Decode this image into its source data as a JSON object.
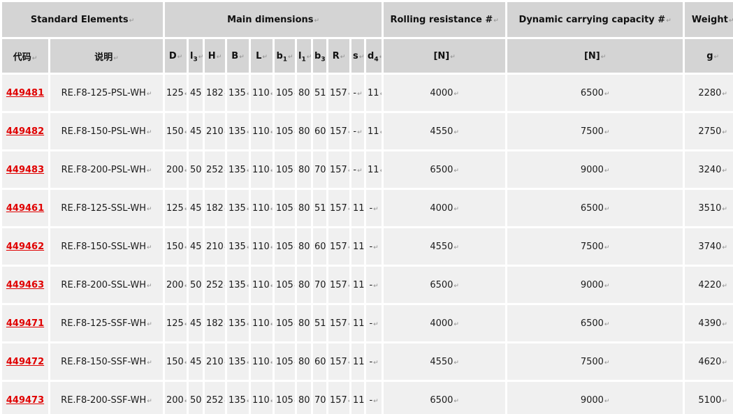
{
  "table": {
    "return_mark": "↵",
    "colors": {
      "header_bg": "#d4d4d4",
      "row_bg": "#f0f0f0",
      "border": "#ffffff",
      "link_red": "#e00000",
      "text": "#1b1b1b",
      "mark_gray": "#8f8f8f"
    },
    "header_groups": [
      {
        "label": "Standard Elements"
      },
      {
        "label": "Main dimensions"
      },
      {
        "label": "Rolling resistance #"
      },
      {
        "label": "Dynamic carrying capacity #"
      },
      {
        "label": "Weight"
      }
    ],
    "columns": [
      {
        "label": "代码"
      },
      {
        "label": "说明"
      },
      {
        "label": "D"
      },
      {
        "label": "l",
        "sub": "3"
      },
      {
        "label": "H"
      },
      {
        "label": "B"
      },
      {
        "label": "L"
      },
      {
        "label": "b",
        "sub": "1"
      },
      {
        "label": "l",
        "sub": "1"
      },
      {
        "label": "b",
        "sub": "3"
      },
      {
        "label": "R"
      },
      {
        "label": "s"
      },
      {
        "label": "d",
        "sub": "4"
      },
      {
        "label": "[N]"
      },
      {
        "label": "[N]"
      },
      {
        "label": "g"
      }
    ],
    "rows": [
      {
        "code": "449481",
        "description": "RE.F8-125-PSL-WH",
        "values": [
          "125",
          "45",
          "182",
          "135",
          "110",
          "105",
          "80",
          "51",
          "157",
          "-",
          "11",
          "4000",
          "6500",
          "2280"
        ]
      },
      {
        "code": "449482",
        "description": "RE.F8-150-PSL-WH",
        "values": [
          "150",
          "45",
          "210",
          "135",
          "110",
          "105",
          "80",
          "60",
          "157",
          "-",
          "11",
          "4550",
          "7500",
          "2750"
        ]
      },
      {
        "code": "449483",
        "description": "RE.F8-200-PSL-WH",
        "values": [
          "200",
          "50",
          "252",
          "135",
          "110",
          "105",
          "80",
          "70",
          "157",
          "-",
          "11",
          "6500",
          "9000",
          "3240"
        ]
      },
      {
        "code": "449461",
        "description": "RE.F8-125-SSL-WH",
        "values": [
          "125",
          "45",
          "182",
          "135",
          "110",
          "105",
          "80",
          "51",
          "157",
          "11",
          "-",
          "4000",
          "6500",
          "3510"
        ]
      },
      {
        "code": "449462",
        "description": "RE.F8-150-SSL-WH",
        "values": [
          "150",
          "45",
          "210",
          "135",
          "110",
          "105",
          "80",
          "60",
          "157",
          "11",
          "-",
          "4550",
          "7500",
          "3740"
        ]
      },
      {
        "code": "449463",
        "description": "RE.F8-200-SSL-WH",
        "values": [
          "200",
          "50",
          "252",
          "135",
          "110",
          "105",
          "80",
          "70",
          "157",
          "11",
          "-",
          "6500",
          "9000",
          "4220"
        ]
      },
      {
        "code": "449471",
        "description": "RE.F8-125-SSF-WH",
        "values": [
          "125",
          "45",
          "182",
          "135",
          "110",
          "105",
          "80",
          "51",
          "157",
          "11",
          "-",
          "4000",
          "6500",
          "4390"
        ]
      },
      {
        "code": "449472",
        "description": "RE.F8-150-SSF-WH",
        "values": [
          "150",
          "45",
          "210",
          "135",
          "110",
          "105",
          "80",
          "60",
          "157",
          "11",
          "-",
          "4550",
          "7500",
          "4620"
        ]
      },
      {
        "code": "449473",
        "description": "RE.F8-200-SSF-WH",
        "values": [
          "200",
          "50",
          "252",
          "135",
          "110",
          "105",
          "80",
          "70",
          "157",
          "11",
          "-",
          "6500",
          "9000",
          "5100"
        ]
      }
    ]
  }
}
